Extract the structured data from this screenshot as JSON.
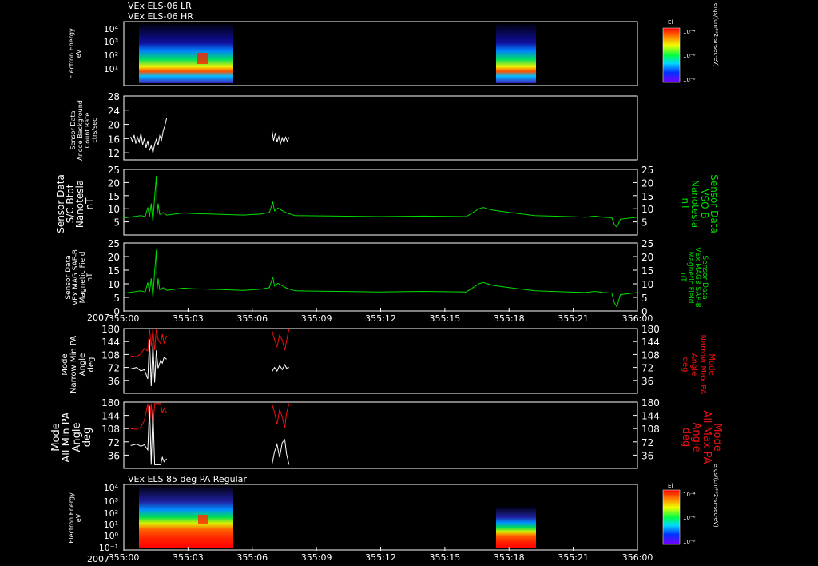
{
  "header": {
    "line1": "VEx ELS-06 LR",
    "line2": "VEx ELS-06 HR"
  },
  "mid_title": "VEx ELS 85 deg PA Regular",
  "colors": {
    "white": "#ffffff",
    "green": "#00dd00",
    "red": "#ee1111",
    "frame": "#ffffff"
  },
  "time_axis": {
    "year": "2007",
    "tick_labels": [
      "355:00",
      "355:03",
      "355:06",
      "355:09",
      "355:12",
      "355:15",
      "355:18",
      "355:21",
      "356:00"
    ],
    "range_min": [
      0,
      60
    ],
    "data_gaps": [
      [
        5,
        17.3
      ],
      [
        19.3,
        60
      ]
    ]
  },
  "chart_data": [
    {
      "type": "heatmap",
      "ylabel": [
        "Electron Energy",
        "eV"
      ],
      "yticks": [
        "10⁴",
        "10³",
        "10²",
        "10¹"
      ],
      "colorbar": {
        "title": "El",
        "labels": [
          "10⁻⁴",
          "10⁻⁶",
          "10⁻⁸"
        ],
        "unit": "ergs/(cm**2-sr-sec-eV)"
      }
    },
    {
      "type": "line",
      "ylabel": [
        "Sensor Data",
        "Anode Background",
        "Count Rate",
        "ctrs/sec"
      ],
      "ylim": [
        10,
        28
      ],
      "yticks": [
        12,
        16,
        20,
        24,
        28
      ],
      "series": [
        {
          "color": "#ffffff",
          "points": [
            [
              0.8,
              16.5
            ],
            [
              1.0,
              15.2
            ],
            [
              1.2,
              17.0
            ],
            [
              1.4,
              14.6
            ],
            [
              1.6,
              16.4
            ],
            [
              1.8,
              15.0
            ],
            [
              2.0,
              17.5
            ],
            [
              2.2,
              14.2
            ],
            [
              2.4,
              16.0
            ],
            [
              2.6,
              13.4
            ],
            [
              2.8,
              15.4
            ],
            [
              3.0,
              12.6
            ],
            [
              3.2,
              14.0
            ],
            [
              3.4,
              12.0
            ],
            [
              3.6,
              14.4
            ],
            [
              3.8,
              15.8
            ],
            [
              4.0,
              14.2
            ],
            [
              4.2,
              16.8
            ],
            [
              4.4,
              15.6
            ],
            [
              4.6,
              18.2
            ],
            [
              4.8,
              19.6
            ],
            [
              5.0,
              21.8
            ],
            [
              17.3,
              18.4
            ],
            [
              17.5,
              15.4
            ],
            [
              17.7,
              17.6
            ],
            [
              17.9,
              15.0
            ],
            [
              18.1,
              16.6
            ],
            [
              18.3,
              14.6
            ],
            [
              18.5,
              16.2
            ],
            [
              18.7,
              15.0
            ],
            [
              18.9,
              16.4
            ],
            [
              19.1,
              15.2
            ],
            [
              19.3,
              16.4
            ]
          ]
        }
      ]
    },
    {
      "type": "line",
      "ylabel": [
        "Sensor Data",
        "S/C Btot",
        "Nanotesla",
        "nT"
      ],
      "ylabel_right": [
        "Sensor Data",
        "VSO B",
        "Nanotesla",
        "nT"
      ],
      "ylim": [
        0,
        25
      ],
      "yticks": [
        5,
        10,
        15,
        20,
        25
      ],
      "series": [
        {
          "color": "#00dd00",
          "points": [
            [
              0,
              6.5
            ],
            [
              2,
              7.4
            ],
            [
              2.5,
              7.0
            ],
            [
              2.8,
              10.5
            ],
            [
              3.0,
              7.0
            ],
            [
              3.2,
              12.0
            ],
            [
              3.4,
              5.0
            ],
            [
              3.6,
              14.5
            ],
            [
              3.8,
              22.5
            ],
            [
              3.9,
              8.0
            ],
            [
              4.0,
              12.0
            ],
            [
              4.2,
              7.8
            ],
            [
              4.6,
              8.6
            ],
            [
              5,
              7.6
            ],
            [
              6,
              8.0
            ],
            [
              7,
              8.4
            ],
            [
              8,
              8.2
            ],
            [
              10,
              8.0
            ],
            [
              14,
              7.6
            ],
            [
              16,
              8.0
            ],
            [
              17,
              8.6
            ],
            [
              17.4,
              12.5
            ],
            [
              17.6,
              9.2
            ],
            [
              18,
              10.2
            ],
            [
              19,
              8.4
            ],
            [
              20,
              7.4
            ],
            [
              25,
              7.2
            ],
            [
              30,
              7.0
            ],
            [
              35,
              7.2
            ],
            [
              40,
              7.0
            ],
            [
              41.5,
              10.0
            ],
            [
              42,
              10.5
            ],
            [
              43,
              9.5
            ],
            [
              45,
              8.6
            ],
            [
              48,
              7.4
            ],
            [
              52,
              7.0
            ],
            [
              54,
              6.8
            ],
            [
              55,
              7.2
            ],
            [
              56,
              6.8
            ],
            [
              57,
              6.6
            ],
            [
              57.3,
              4.0
            ],
            [
              57.6,
              3.0
            ],
            [
              58,
              6.0
            ],
            [
              59,
              6.4
            ],
            [
              60,
              6.8
            ]
          ]
        }
      ]
    },
    {
      "type": "line",
      "ylabel": [
        "Sensor Data",
        "VEx MAG SAF-B",
        "Magnetic Field",
        "nT"
      ],
      "ylabel_right": [
        "Sensor Data",
        "VEx MAG3 SAF-B",
        "Magnetic Field",
        "nT"
      ],
      "ylim": [
        0,
        25
      ],
      "yticks": [
        0,
        5,
        10,
        15,
        20,
        25
      ],
      "series": [
        {
          "color": "#00dd00",
          "points": [
            [
              0,
              6.5
            ],
            [
              2,
              7.4
            ],
            [
              2.5,
              7.0
            ],
            [
              2.8,
              10.5
            ],
            [
              3.0,
              7.0
            ],
            [
              3.2,
              12.0
            ],
            [
              3.4,
              5.0
            ],
            [
              3.6,
              14.5
            ],
            [
              3.8,
              22.5
            ],
            [
              3.9,
              8.0
            ],
            [
              4.0,
              12.0
            ],
            [
              4.2,
              7.8
            ],
            [
              4.6,
              8.6
            ],
            [
              5,
              7.6
            ],
            [
              6,
              8.0
            ],
            [
              7,
              8.4
            ],
            [
              8,
              8.2
            ],
            [
              10,
              8.0
            ],
            [
              14,
              7.6
            ],
            [
              16,
              8.0
            ],
            [
              17,
              8.6
            ],
            [
              17.4,
              12.5
            ],
            [
              17.6,
              9.2
            ],
            [
              18,
              10.2
            ],
            [
              19,
              8.4
            ],
            [
              20,
              7.4
            ],
            [
              25,
              7.2
            ],
            [
              30,
              7.0
            ],
            [
              35,
              7.2
            ],
            [
              40,
              7.0
            ],
            [
              41.5,
              10.0
            ],
            [
              42,
              10.5
            ],
            [
              43,
              9.5
            ],
            [
              45,
              8.6
            ],
            [
              48,
              7.4
            ],
            [
              52,
              7.0
            ],
            [
              54,
              6.8
            ],
            [
              55,
              7.2
            ],
            [
              56,
              6.8
            ],
            [
              57,
              6.6
            ],
            [
              57.3,
              3.0
            ],
            [
              57.6,
              1.5
            ],
            [
              58,
              6.0
            ],
            [
              59,
              6.4
            ],
            [
              60,
              6.8
            ]
          ]
        }
      ]
    },
    {
      "type": "line",
      "ylabel": [
        "Mode",
        "Narrow Min PA",
        "Angle",
        "deg"
      ],
      "ylabel_right": [
        "Mode",
        "Narrow Max PA",
        "Angle",
        "deg"
      ],
      "ylim": [
        0,
        180
      ],
      "yticks": [
        36,
        72,
        108,
        144,
        180
      ],
      "series": [
        {
          "color": "#ee1111",
          "points": [
            [
              0.8,
              104
            ],
            [
              1.5,
              102
            ],
            [
              2.0,
              110
            ],
            [
              2.4,
              125
            ],
            [
              2.8,
              118
            ],
            [
              3.0,
              180
            ],
            [
              3.2,
              130
            ],
            [
              3.4,
              180
            ],
            [
              3.6,
              120
            ],
            [
              3.8,
              180
            ],
            [
              4.0,
              150
            ],
            [
              4.3,
              138
            ],
            [
              4.5,
              165
            ],
            [
              4.7,
              140
            ],
            [
              5.0,
              160
            ],
            [
              17.3,
              175
            ],
            [
              17.6,
              150
            ],
            [
              17.9,
              130
            ],
            [
              18.2,
              162
            ],
            [
              18.5,
              148
            ],
            [
              18.8,
              120
            ],
            [
              19.0,
              145
            ],
            [
              19.3,
              180
            ]
          ]
        },
        {
          "color": "#ffffff",
          "points": [
            [
              0.8,
              68
            ],
            [
              1.5,
              72
            ],
            [
              2.0,
              62
            ],
            [
              2.4,
              66
            ],
            [
              2.8,
              40
            ],
            [
              3.0,
              150
            ],
            [
              3.2,
              20
            ],
            [
              3.4,
              140
            ],
            [
              3.6,
              30
            ],
            [
              3.8,
              120
            ],
            [
              4.0,
              70
            ],
            [
              4.3,
              92
            ],
            [
              4.5,
              84
            ],
            [
              4.7,
              100
            ],
            [
              5.0,
              95
            ],
            [
              17.3,
              60
            ],
            [
              17.6,
              72
            ],
            [
              17.9,
              62
            ],
            [
              18.2,
              78
            ],
            [
              18.5,
              66
            ],
            [
              18.8,
              80
            ],
            [
              19.0,
              70
            ],
            [
              19.3,
              72
            ]
          ]
        }
      ]
    },
    {
      "type": "line",
      "ylabel": [
        "Mode",
        "All Min PA",
        "Angle",
        "deg"
      ],
      "ylabel_right": [
        "Mode",
        "All Max PA",
        "Angle",
        "deg"
      ],
      "ylim": [
        0,
        180
      ],
      "yticks": [
        36,
        72,
        108,
        144,
        180
      ],
      "series": [
        {
          "color": "#ee1111",
          "points": [
            [
              0.8,
              108
            ],
            [
              1.5,
              106
            ],
            [
              2.0,
              112
            ],
            [
              2.4,
              130
            ],
            [
              2.8,
              176
            ],
            [
              3.0,
              120
            ],
            [
              3.2,
              176
            ],
            [
              3.4,
              110
            ],
            [
              3.6,
              176
            ],
            [
              3.8,
              176
            ],
            [
              4.3,
              176
            ],
            [
              4.5,
              150
            ],
            [
              4.7,
              164
            ],
            [
              5.0,
              150
            ],
            [
              17.3,
              176
            ],
            [
              17.6,
              152
            ],
            [
              17.9,
              120
            ],
            [
              18.2,
              160
            ],
            [
              18.5,
              140
            ],
            [
              18.8,
              110
            ],
            [
              19.0,
              150
            ],
            [
              19.3,
              176
            ]
          ]
        },
        {
          "color": "#ffffff",
          "points": [
            [
              0.8,
              62
            ],
            [
              1.5,
              66
            ],
            [
              2.0,
              60
            ],
            [
              2.4,
              64
            ],
            [
              2.8,
              50
            ],
            [
              3.0,
              170
            ],
            [
              3.2,
              10
            ],
            [
              3.4,
              160
            ],
            [
              3.6,
              10
            ],
            [
              3.8,
              10
            ],
            [
              4.3,
              10
            ],
            [
              4.5,
              30
            ],
            [
              4.7,
              18
            ],
            [
              5.0,
              26
            ],
            [
              17.3,
              10
            ],
            [
              17.6,
              45
            ],
            [
              17.9,
              65
            ],
            [
              18.2,
              30
            ],
            [
              18.5,
              70
            ],
            [
              18.8,
              78
            ],
            [
              19.0,
              40
            ],
            [
              19.3,
              10
            ]
          ]
        }
      ]
    },
    {
      "type": "heatmap",
      "ylabel": [
        "Electron Energy",
        "eV"
      ],
      "yticks": [
        "10⁴",
        "10³",
        "10²",
        "10¹",
        "10⁰",
        "10⁻¹"
      ],
      "colorbar": {
        "title": "El",
        "labels": [
          "10⁻⁴",
          "10⁻⁶",
          "10⁻⁸"
        ],
        "unit": "ergs/(cm**2-sr-sec-eV)"
      }
    }
  ]
}
